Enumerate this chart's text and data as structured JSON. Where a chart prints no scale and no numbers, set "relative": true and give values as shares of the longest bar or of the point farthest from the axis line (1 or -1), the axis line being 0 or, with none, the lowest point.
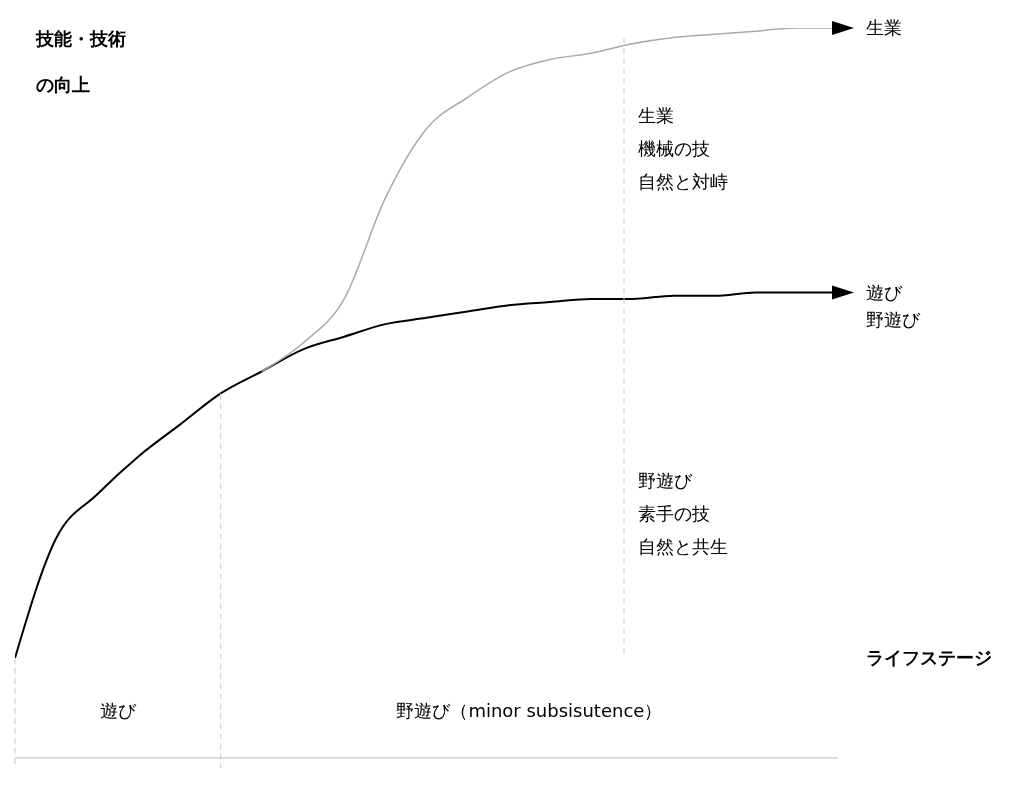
{
  "chart_data": {
    "type": "line",
    "relative": true,
    "ylabel": "技能・技術の向上",
    "xlabel": "ライフステージ",
    "categories": [
      null,
      null,
      null,
      null,
      null,
      null,
      null,
      null,
      null,
      null,
      null,
      null,
      null,
      null,
      null,
      null,
      null,
      null,
      null,
      null,
      null
    ],
    "series": [
      {
        "name": "遊び",
        "color": "#000000",
        "values": [
          0,
          0.19,
          0.26,
          0.32,
          0.37,
          0.42,
          0.455,
          0.49,
          0.51,
          0.53,
          0.54,
          0.55,
          0.56,
          0.565,
          0.57,
          0.57,
          0.575,
          0.575,
          0.58,
          0.58,
          0.58
        ]
      },
      {
        "name": "生業",
        "color": "#aaaaaa",
        "values": [
          null,
          null,
          null,
          null,
          null,
          null,
          0.455,
          0.5,
          0.57,
          0.73,
          0.84,
          0.89,
          0.93,
          0.95,
          0.96,
          0.975,
          0.985,
          0.99,
          0.995,
          1,
          1
        ]
      }
    ],
    "annotations": [
      "野遊び",
      "生業",
      "機械の技",
      "自然と対峙",
      "野遊び",
      "素手の技",
      "自然と共生",
      "遊び",
      "野遊び（minor subsisutence）"
    ]
  }
}
